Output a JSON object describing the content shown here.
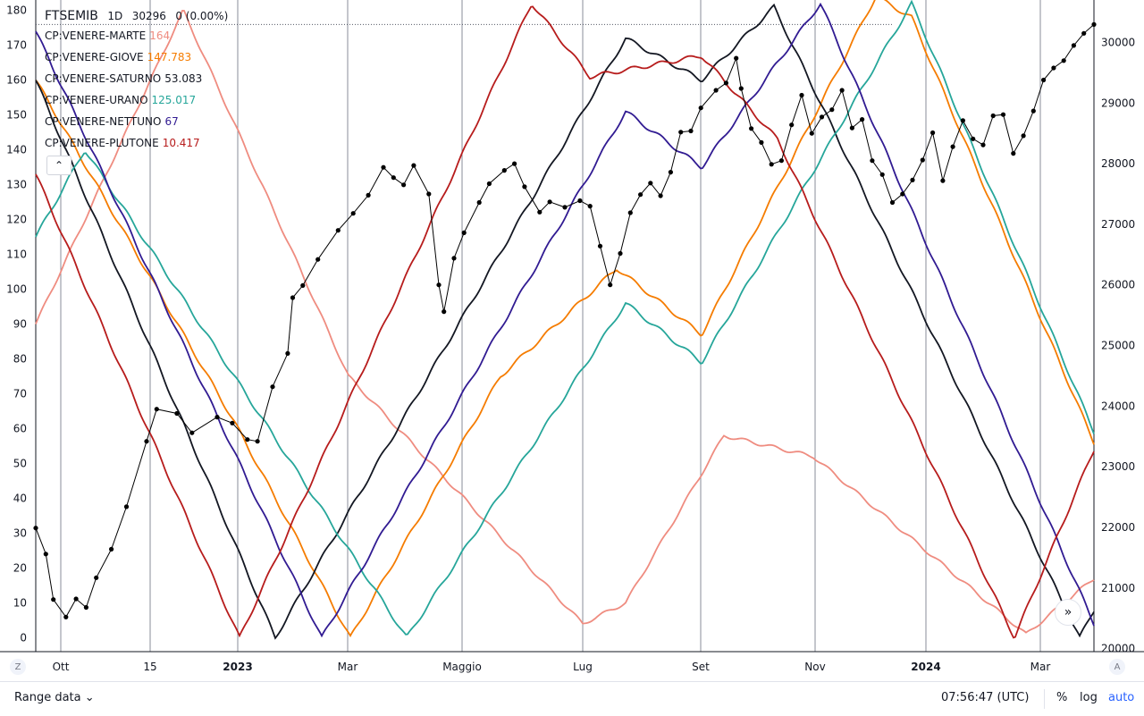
{
  "header": {
    "symbol": "FTSEMIB",
    "interval": "1D",
    "last_price": "30296",
    "change": "0 (0.00%)"
  },
  "legend": [
    {
      "label": "CP:VENERE-MARTE",
      "value": "164",
      "color": "#ef8c80"
    },
    {
      "label": "CP:VENERE-GIOVE",
      "value": "147.783",
      "color": "#f57c00"
    },
    {
      "label": "CP:VENERE-SATURNO",
      "value": "53.083",
      "color": "#131722"
    },
    {
      "label": "CP:VENERE-URANO",
      "value": "125.017",
      "color": "#26a69a"
    },
    {
      "label": "CP:VENERE-NETTUNO",
      "value": "67",
      "color": "#311b92"
    },
    {
      "label": "CP:VENERE-PLUTONE",
      "value": "10.417",
      "color": "#b71c1c"
    }
  ],
  "collapse_icon": "chevron-up-icon",
  "bottom_bar": {
    "range_label": "Range data",
    "clock": "07:56:47 (UTC)",
    "percent": "%",
    "log": "log",
    "auto": "auto",
    "left_button": "Z",
    "right_button": "A"
  },
  "chart_data": {
    "type": "line",
    "symbol": "FTSEMIB",
    "x_tick_labels": [
      "Ott",
      "15",
      "2023",
      "Mar",
      "Maggio",
      "Lug",
      "Set",
      "Nov",
      "2024",
      "Mar"
    ],
    "left_axis": {
      "ticks": [
        0,
        10,
        20,
        30,
        40,
        50,
        60,
        70,
        80,
        90,
        100,
        110,
        120,
        130,
        140,
        150,
        160,
        170,
        180
      ],
      "range": [
        -4,
        183
      ]
    },
    "right_axis": {
      "ticks": [
        20000,
        21000,
        22000,
        23000,
        24000,
        25000,
        26000,
        27000,
        28000,
        29000,
        30000
      ],
      "range": [
        19950,
        30700
      ]
    },
    "reference_line": 30296,
    "price_series": {
      "name": "FTSEMIB",
      "color": "#000000",
      "points": [
        [
          0.0,
          21990
        ],
        [
          0.02,
          21560
        ],
        [
          0.035,
          20810
        ],
        [
          0.06,
          20520
        ],
        [
          0.08,
          20820
        ],
        [
          0.1,
          20680
        ],
        [
          0.12,
          21170
        ],
        [
          0.15,
          21640
        ],
        [
          0.18,
          22340
        ],
        [
          0.22,
          23420
        ],
        [
          0.24,
          23950
        ],
        [
          0.28,
          23880
        ],
        [
          0.31,
          23560
        ],
        [
          0.36,
          23820
        ],
        [
          0.39,
          23720
        ],
        [
          0.42,
          23450
        ],
        [
          0.44,
          23420
        ],
        [
          0.47,
          24320
        ],
        [
          0.5,
          24870
        ],
        [
          0.51,
          25790
        ],
        [
          0.53,
          25990
        ],
        [
          0.56,
          26420
        ],
        [
          0.6,
          26900
        ],
        [
          0.63,
          27180
        ],
        [
          0.66,
          27480
        ],
        [
          0.69,
          27940
        ],
        [
          0.71,
          27770
        ],
        [
          0.73,
          27650
        ],
        [
          0.75,
          27970
        ],
        [
          0.78,
          27500
        ],
        [
          0.8,
          26000
        ],
        [
          0.81,
          25560
        ],
        [
          0.83,
          26440
        ],
        [
          0.85,
          26860
        ],
        [
          0.88,
          27360
        ],
        [
          0.9,
          27670
        ],
        [
          0.93,
          27890
        ],
        [
          0.95,
          28000
        ],
        [
          0.97,
          27620
        ],
        [
          1.0,
          27200
        ],
        [
          1.02,
          27370
        ],
        [
          1.05,
          27280
        ],
        [
          1.08,
          27390
        ],
        [
          1.1,
          27300
        ],
        [
          1.12,
          26640
        ],
        [
          1.14,
          26000
        ],
        [
          1.16,
          26520
        ],
        [
          1.18,
          27190
        ],
        [
          1.2,
          27490
        ],
        [
          1.22,
          27680
        ],
        [
          1.24,
          27470
        ],
        [
          1.26,
          27860
        ],
        [
          1.28,
          28520
        ],
        [
          1.3,
          28540
        ],
        [
          1.32,
          28920
        ],
        [
          1.35,
          29210
        ],
        [
          1.37,
          29330
        ],
        [
          1.39,
          29740
        ],
        [
          1.4,
          29240
        ],
        [
          1.42,
          28580
        ],
        [
          1.44,
          28350
        ],
        [
          1.46,
          27990
        ],
        [
          1.48,
          28050
        ],
        [
          1.5,
          28640
        ],
        [
          1.52,
          29130
        ],
        [
          1.54,
          28500
        ],
        [
          1.56,
          28770
        ],
        [
          1.58,
          28890
        ],
        [
          1.6,
          29210
        ],
        [
          1.62,
          28590
        ],
        [
          1.64,
          28730
        ],
        [
          1.66,
          28050
        ],
        [
          1.68,
          27820
        ],
        [
          1.7,
          27360
        ],
        [
          1.72,
          27500
        ],
        [
          1.74,
          27730
        ],
        [
          1.76,
          28060
        ],
        [
          1.78,
          28510
        ],
        [
          1.8,
          27720
        ],
        [
          1.82,
          28280
        ],
        [
          1.84,
          28710
        ],
        [
          1.86,
          28410
        ],
        [
          1.88,
          28310
        ],
        [
          1.9,
          28790
        ],
        [
          1.92,
          28810
        ],
        [
          1.94,
          28170
        ],
        [
          1.96,
          28460
        ],
        [
          1.98,
          28870
        ],
        [
          2.0,
          29380
        ],
        [
          2.02,
          29580
        ],
        [
          2.04,
          29700
        ],
        [
          2.06,
          29950
        ],
        [
          2.08,
          30150
        ],
        [
          2.1,
          30296
        ]
      ]
    },
    "series": [
      {
        "name": "CP:VENERE-MARTE",
        "color": "#ef8c80"
      },
      {
        "name": "CP:VENERE-GIOVE",
        "color": "#f57c00"
      },
      {
        "name": "CP:VENERE-SATURNO",
        "color": "#131722"
      },
      {
        "name": "CP:VENERE-URANO",
        "color": "#26a69a"
      },
      {
        "name": "CP:VENERE-NETTUNO",
        "color": "#311b92"
      },
      {
        "name": "CP:VENERE-PLUTONE",
        "color": "#b71c1c"
      }
    ],
    "grid": "vertical"
  }
}
